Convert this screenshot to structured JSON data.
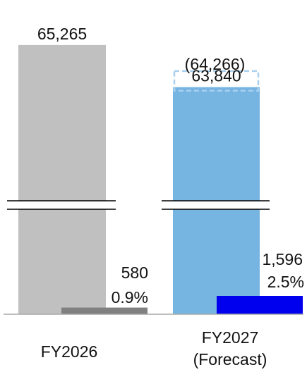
{
  "chart_data": {
    "type": "bar",
    "categories": [
      "FY2026",
      "FY2027"
    ],
    "category_labels": [
      [
        "FY2026"
      ],
      [
        "FY2027",
        "(Forecast)"
      ]
    ],
    "series": [
      {
        "values": [
          65265,
          63840
        ],
        "value_labels": [
          "65,265",
          "63,840"
        ],
        "colors": [
          "#c0c0c0",
          "#76b4e2"
        ]
      },
      {
        "values": [
          580,
          1596
        ],
        "value_labels": [
          "580",
          "1,596"
        ],
        "percent_labels": [
          "0.9%",
          "2.5%"
        ],
        "colors": [
          "#808080",
          "#0000ee"
        ]
      }
    ],
    "previous_forecast": {
      "category": "FY2027",
      "value": 64266,
      "label": "(64,266)",
      "style": "dashed-outline",
      "color": "#a9d0ee"
    },
    "axis_break": true,
    "title": "",
    "xlabel": "",
    "ylabel": "",
    "grid": false,
    "legend": "none"
  }
}
